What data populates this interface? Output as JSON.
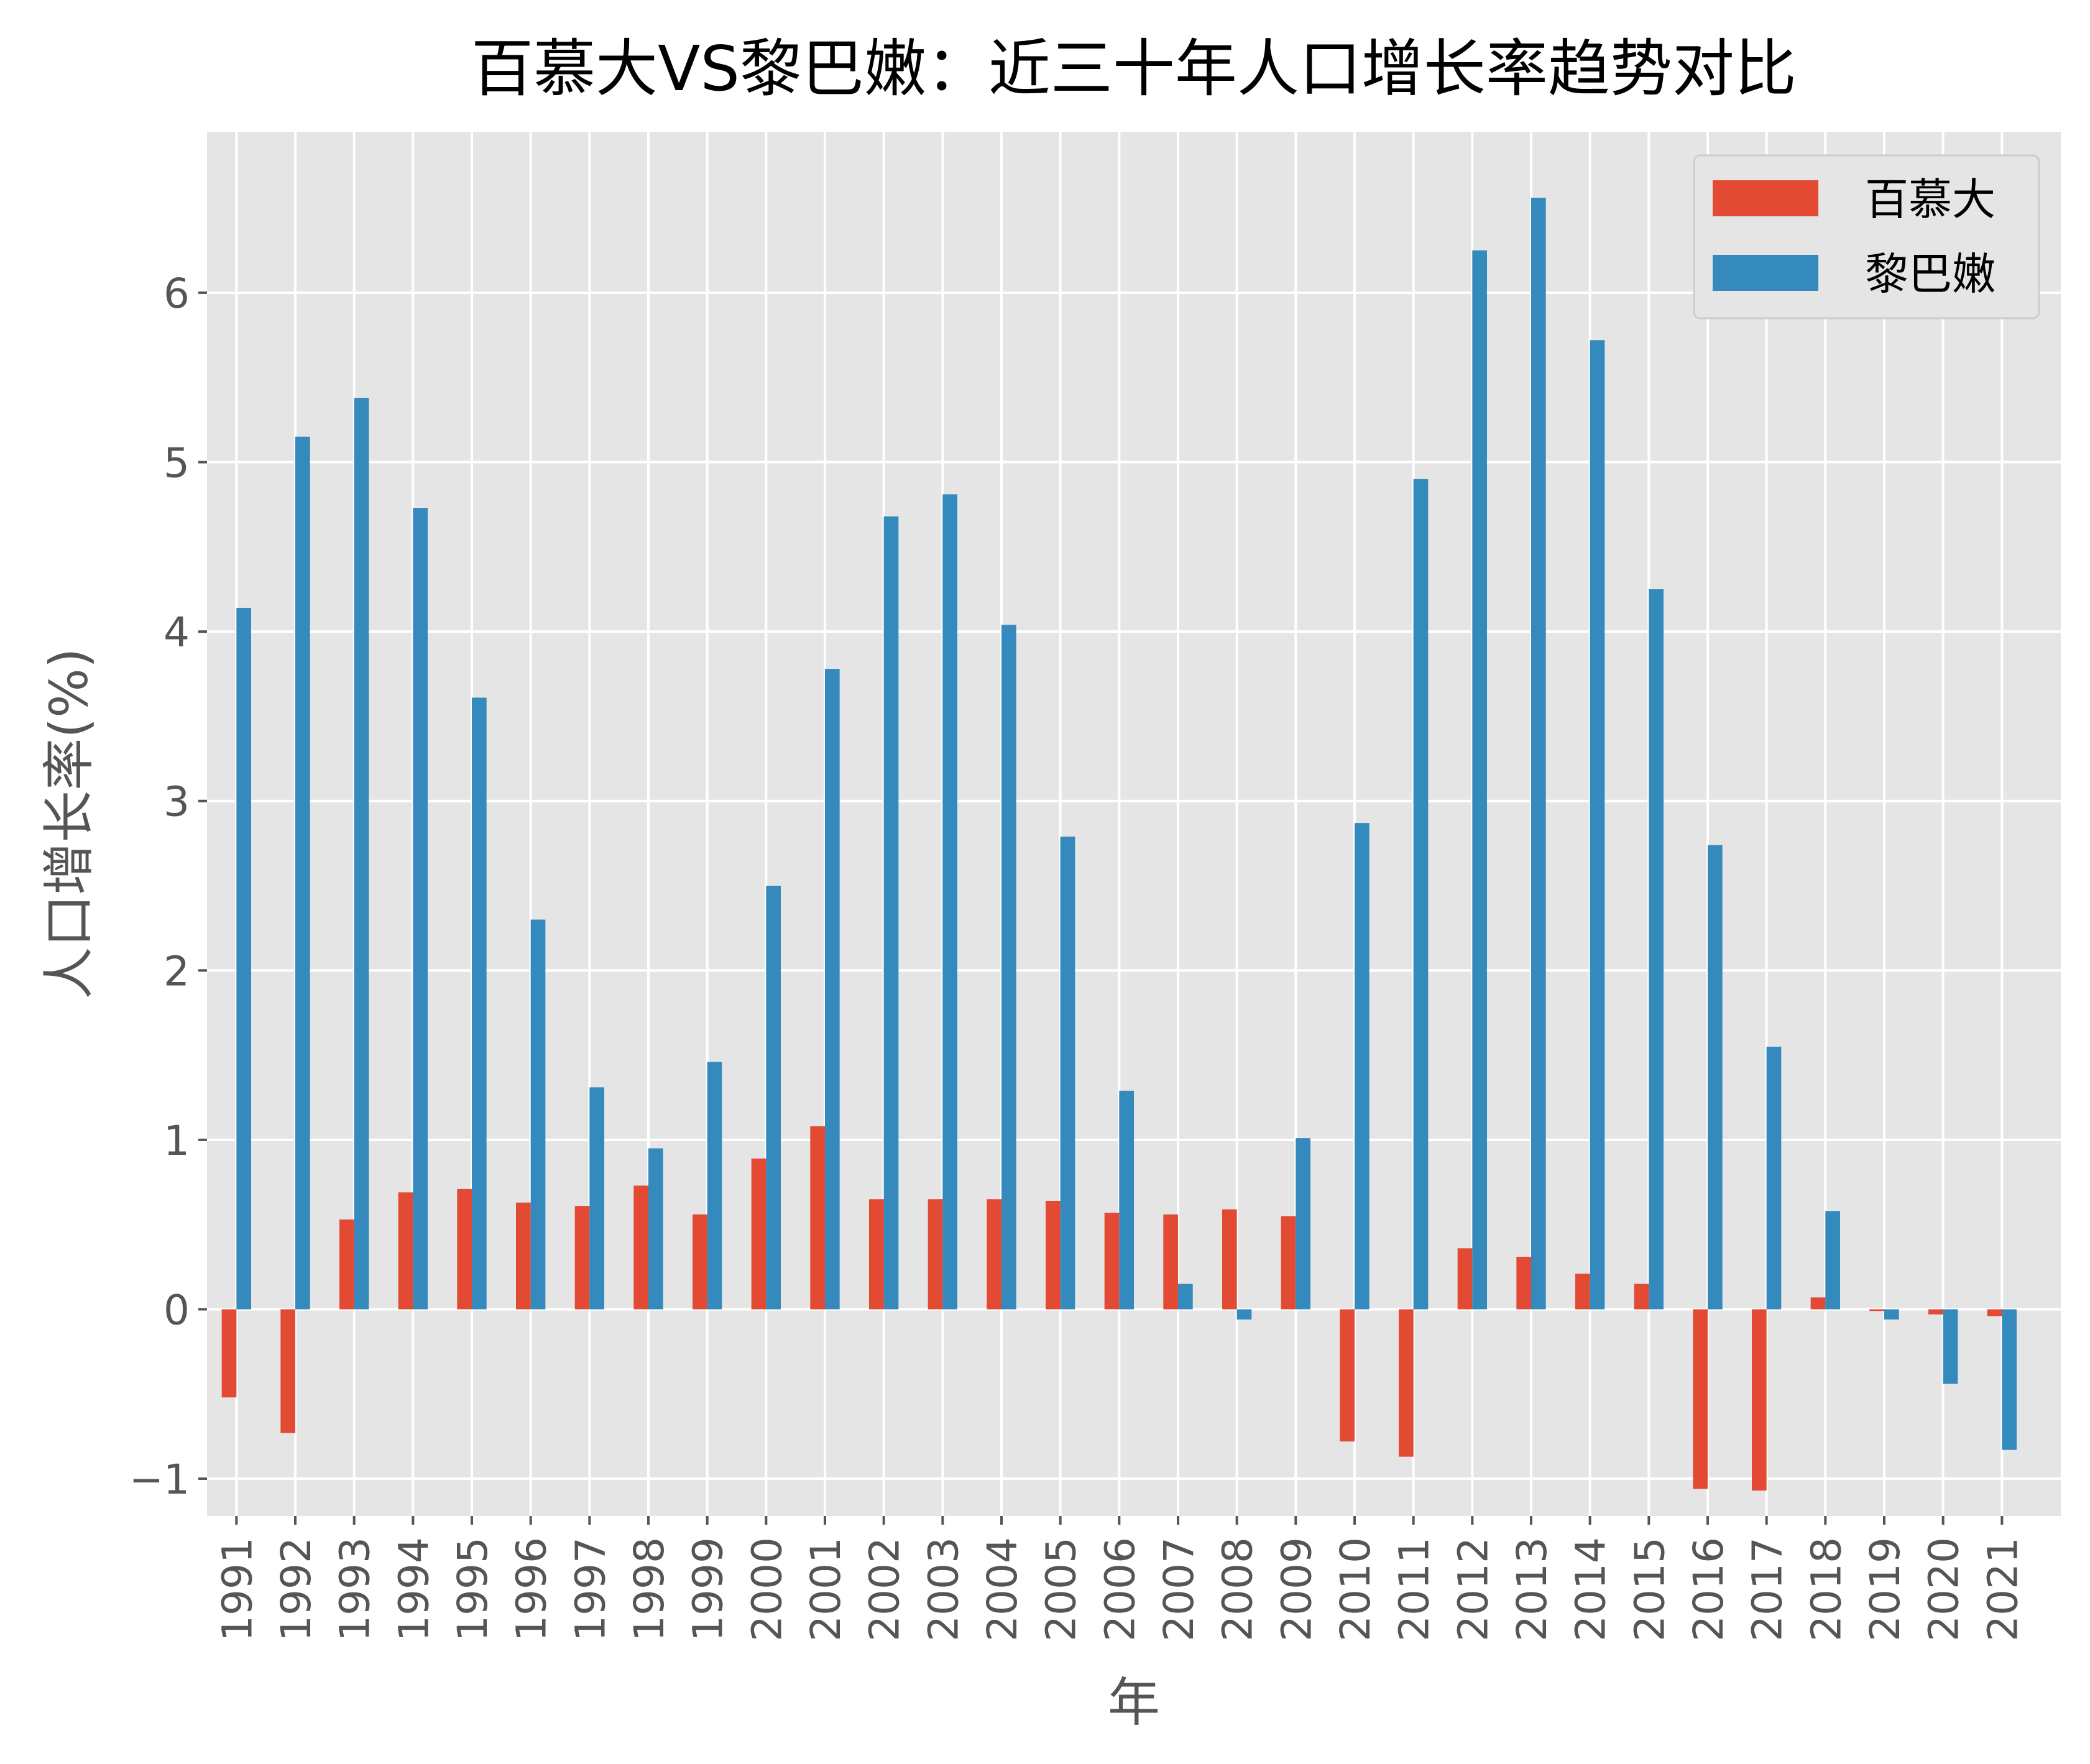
{
  "chart_data": {
    "type": "bar",
    "title": "百慕大VS黎巴嫩：近三十年人口增长率趋势对比",
    "xlabel": "年",
    "ylabel": "人口增长率(%)",
    "ylim": [
      -1.22,
      6.95
    ],
    "yticks": [
      -1,
      0,
      1,
      2,
      3,
      4,
      5,
      6
    ],
    "yticklabels": [
      "−1",
      "0",
      "1",
      "2",
      "3",
      "4",
      "5",
      "6"
    ],
    "grid": true,
    "legend_position": "top-right",
    "categories": [
      "1991",
      "1992",
      "1993",
      "1994",
      "1995",
      "1996",
      "1997",
      "1998",
      "1999",
      "2000",
      "2001",
      "2002",
      "2003",
      "2004",
      "2005",
      "2006",
      "2007",
      "2008",
      "2009",
      "2010",
      "2011",
      "2012",
      "2013",
      "2014",
      "2015",
      "2016",
      "2017",
      "2018",
      "2019",
      "2020",
      "2021"
    ],
    "series": [
      {
        "name": "百慕大",
        "color": "#E24A33",
        "values": [
          -0.52,
          -0.73,
          0.53,
          0.69,
          0.71,
          0.63,
          0.61,
          0.73,
          0.56,
          0.89,
          1.08,
          0.65,
          0.65,
          0.65,
          0.64,
          0.57,
          0.56,
          0.59,
          0.55,
          -0.78,
          -0.87,
          0.36,
          0.31,
          0.21,
          0.15,
          -1.06,
          -1.07,
          0.07,
          -0.01,
          -0.03,
          -0.04
        ]
      },
      {
        "name": "黎巴嫩",
        "color": "#348ABD",
        "values": [
          4.14,
          5.15,
          5.38,
          4.73,
          3.61,
          2.3,
          1.31,
          0.95,
          1.46,
          2.5,
          3.78,
          4.68,
          4.81,
          4.04,
          2.79,
          1.29,
          0.15,
          -0.06,
          1.01,
          2.87,
          4.9,
          6.25,
          6.56,
          5.72,
          4.25,
          2.74,
          1.55,
          0.58,
          -0.06,
          -0.44,
          -0.83
        ]
      }
    ]
  }
}
